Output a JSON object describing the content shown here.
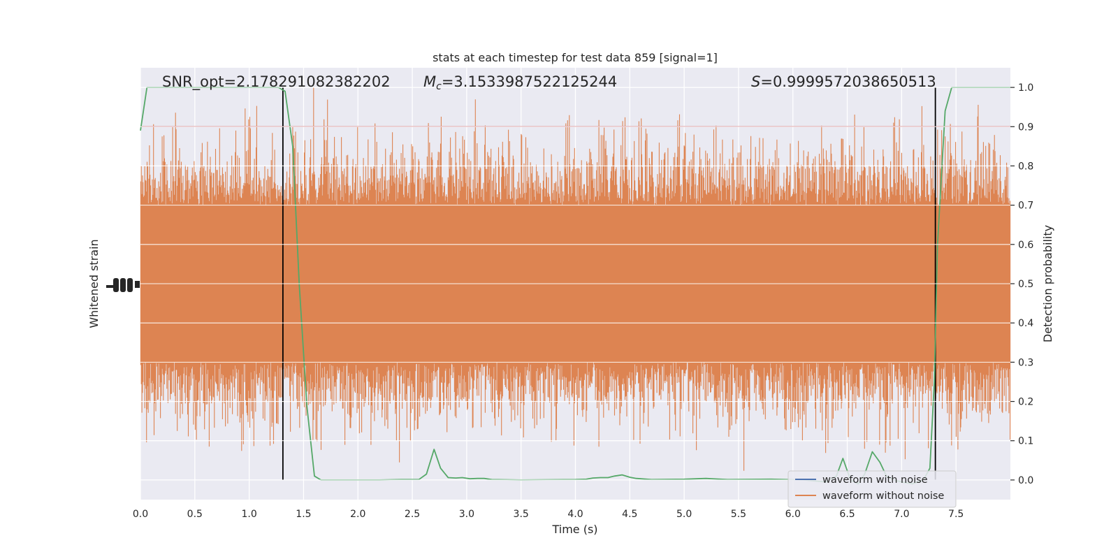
{
  "chart_data": {
    "type": "line",
    "title": "stats at each timestep for test data 859 [signal=1]",
    "xlabel": "Time (s)",
    "ylabel_left": "Whitened strain",
    "ylabel_right": "Detection probability",
    "xlim": [
      0.0,
      8.0
    ],
    "ylim_right": [
      -0.05,
      1.05
    ],
    "xticks": [
      0.0,
      0.5,
      1.0,
      1.5,
      2.0,
      2.5,
      3.0,
      3.5,
      4.0,
      4.5,
      5.0,
      5.5,
      6.0,
      6.5,
      7.0,
      7.5
    ],
    "xtick_labels": [
      "0.0",
      "0.5",
      "1.0",
      "1.5",
      "2.0",
      "2.5",
      "3.0",
      "3.5",
      "4.0",
      "4.5",
      "5.0",
      "5.5",
      "6.0",
      "6.5",
      "7.0",
      "7.5"
    ],
    "yticks_right": [
      0.0,
      0.1,
      0.2,
      0.3,
      0.4,
      0.5,
      0.6,
      0.7,
      0.8,
      0.9,
      1.0
    ],
    "ytick_labels_right": [
      "0.0",
      "0.1",
      "0.2",
      "0.3",
      "0.4",
      "0.5",
      "0.6",
      "0.7",
      "0.8",
      "0.9",
      "1.0"
    ],
    "grid": true,
    "legend_position": "lower-right",
    "annotations": {
      "snr": "SNR_opt=2.178291082382202",
      "mc_symbol": "M",
      "mc_sub": "c",
      "mc_value": "=3.1533987522125244",
      "s_symbol": "S",
      "s_value": "=0.9999572038650513"
    },
    "threshold": {
      "y": 0.9,
      "color": "#c44e52"
    },
    "vertical_lines": {
      "x": [
        1.31,
        7.31
      ],
      "ymin": 0.0,
      "ymax": 1.0,
      "color": "#000000"
    },
    "strain_band": {
      "center": 0.5,
      "core_half_width": 0.2,
      "color": "#dd8452"
    },
    "series": [
      {
        "name": "waveform with noise",
        "color": "#4c72b0"
      },
      {
        "name": "waveform without noise",
        "color": "#dd8452"
      }
    ],
    "probability_series": {
      "color": "#55a868",
      "x": [
        0.0,
        0.06,
        0.13,
        1.2,
        1.27,
        1.33,
        1.4,
        1.46,
        1.53,
        1.6,
        1.66,
        1.73,
        2.0,
        2.2,
        2.4,
        2.56,
        2.63,
        2.7,
        2.76,
        2.83,
        2.9,
        2.96,
        3.03,
        3.1,
        3.16,
        3.23,
        3.5,
        4.0,
        4.1,
        4.16,
        4.23,
        4.3,
        4.36,
        4.43,
        4.5,
        4.56,
        4.7,
        5.0,
        5.2,
        5.4,
        5.8,
        6.1,
        6.3,
        6.4,
        6.46,
        6.53,
        6.6,
        6.66,
        6.73,
        6.8,
        6.86,
        6.93,
        7.0,
        7.1,
        7.2,
        7.26,
        7.3,
        7.33,
        7.4,
        7.46,
        7.6,
        8.0
      ],
      "y": [
        0.89,
        1.0,
        1.0,
        1.0,
        1.0,
        0.99,
        0.85,
        0.5,
        0.19,
        0.01,
        0.0,
        0.0,
        0.0,
        0.0,
        0.001,
        0.001,
        0.015,
        0.078,
        0.03,
        0.006,
        0.005,
        0.006,
        0.003,
        0.004,
        0.004,
        0.001,
        0.0,
        0.001,
        0.002,
        0.005,
        0.006,
        0.006,
        0.01,
        0.013,
        0.007,
        0.004,
        0.001,
        0.002,
        0.004,
        0.001,
        0.002,
        0.0,
        -0.005,
        0.01,
        0.055,
        0.0,
        -0.01,
        0.015,
        0.072,
        0.045,
        0.01,
        0.0,
        -0.005,
        -0.01,
        0.0,
        0.03,
        0.25,
        0.6,
        0.94,
        1.0,
        1.0,
        1.0
      ]
    }
  }
}
